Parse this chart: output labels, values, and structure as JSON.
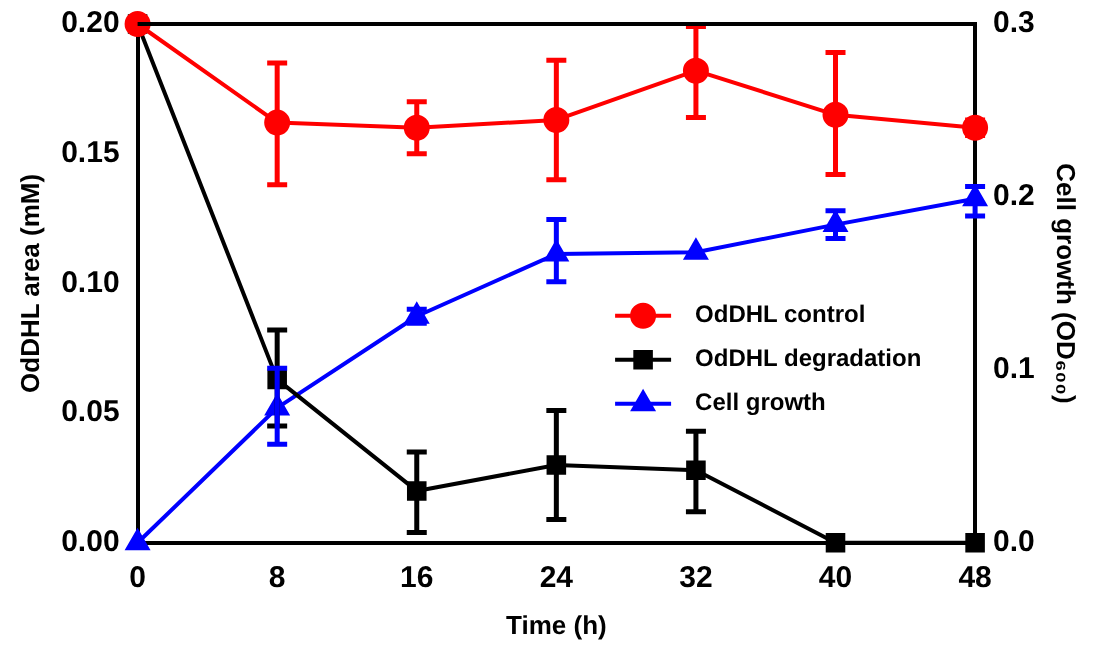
{
  "chart_data": {
    "type": "line",
    "xlabel": "Time (h)",
    "ylabel": "OdDHL area (mM)",
    "y2label": "Cell growth (OD₆₀₀)",
    "x": [
      0,
      8,
      16,
      24,
      32,
      40,
      48
    ],
    "xlim": [
      0,
      48
    ],
    "xticks": [
      0,
      8,
      16,
      24,
      32,
      40,
      48
    ],
    "ylim": [
      0,
      0.2
    ],
    "yticks": [
      {
        "value": 0,
        "label": "0.00"
      },
      {
        "value": 0.05,
        "label": "0.05"
      },
      {
        "value": 0.1,
        "label": "0.10"
      },
      {
        "value": 0.15,
        "label": "0.15"
      },
      {
        "value": 0.2,
        "label": "0.20"
      }
    ],
    "y2lim": [
      0,
      0.3
    ],
    "y2ticks": [
      {
        "value": 0,
        "label": "0.0"
      },
      {
        "value": 0.1,
        "label": "0.1"
      },
      {
        "value": 0.2,
        "label": "0.2"
      },
      {
        "value": 0.3,
        "label": "0.3"
      }
    ],
    "grid": false,
    "legend": "right",
    "line_style": "solid",
    "series": [
      {
        "name": "OdDHL control",
        "color": "#ff0000",
        "marker": "circle",
        "values": [
          0.2,
          0.162,
          0.16,
          0.163,
          0.182,
          0.165,
          0.16
        ],
        "errors": [
          null,
          [
            0.138,
            0.185
          ],
          [
            0.15,
            0.17
          ],
          [
            0.14,
            0.186
          ],
          [
            0.164,
            0.199
          ],
          [
            0.142,
            0.189
          ],
          [
            0.157,
            0.163
          ]
        ]
      },
      {
        "name": "OdDHL degradation",
        "color": "#000000",
        "marker": "square",
        "values": [
          0.2,
          0.063,
          0.02,
          0.03,
          0.028,
          0,
          0
        ],
        "errors": [
          null,
          [
            0.045,
            0.082
          ],
          [
            0.004,
            0.035
          ],
          [
            0.009,
            0.051
          ],
          [
            0.012,
            0.043
          ],
          null,
          null
        ]
      },
      {
        "name": "Cell growth",
        "color": "#0000ff",
        "marker": "triangle",
        "axis": "y2",
        "values": [
          0,
          0.078,
          0.131,
          0.167,
          0.168,
          0.184,
          0.199
        ],
        "errors": [
          null,
          [
            0.057,
            0.101
          ],
          [
            0.127,
            0.135
          ],
          [
            0.151,
            0.187
          ],
          null,
          [
            0.176,
            0.192
          ],
          [
            0.189,
            0.206
          ]
        ]
      }
    ]
  }
}
